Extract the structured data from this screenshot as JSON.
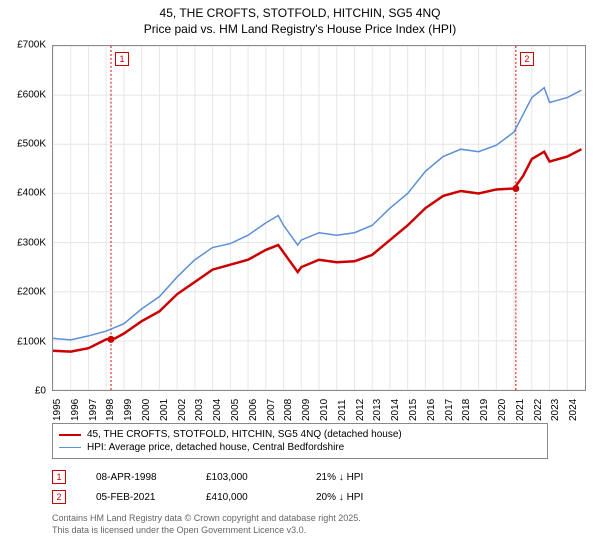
{
  "title": {
    "line1": "45, THE CROFTS, STOTFOLD, HITCHIN, SG5 4NQ",
    "line2": "Price paid vs. HM Land Registry's House Price Index (HPI)"
  },
  "chart": {
    "type": "line",
    "background_color": "#ffffff",
    "grid_color": "#e6e6e6",
    "border_color": "#888888",
    "ylim": [
      0,
      700000
    ],
    "ytick_step": 100000,
    "y_ticks": [
      {
        "v": 0,
        "label": "£0"
      },
      {
        "v": 100000,
        "label": "£100K"
      },
      {
        "v": 200000,
        "label": "£200K"
      },
      {
        "v": 300000,
        "label": "£300K"
      },
      {
        "v": 400000,
        "label": "£400K"
      },
      {
        "v": 500000,
        "label": "£500K"
      },
      {
        "v": 600000,
        "label": "£600K"
      },
      {
        "v": 700000,
        "label": "£700K"
      }
    ],
    "xlim": [
      1995,
      2025
    ],
    "x_ticks": [
      1995,
      1996,
      1997,
      1998,
      1999,
      2000,
      2001,
      2002,
      2003,
      2004,
      2005,
      2006,
      2007,
      2008,
      2009,
      2010,
      2011,
      2012,
      2013,
      2014,
      2015,
      2016,
      2017,
      2018,
      2019,
      2020,
      2021,
      2022,
      2023,
      2024
    ],
    "series": [
      {
        "name": "45, THE CROFTS, STOTFOLD, HITCHIN, SG5 4NQ (detached house)",
        "color": "#cc0000",
        "line_width": 2.5,
        "points": [
          [
            1995,
            80000
          ],
          [
            1996,
            78000
          ],
          [
            1997,
            85000
          ],
          [
            1998,
            103000
          ],
          [
            1998.5,
            105000
          ],
          [
            1999,
            115000
          ],
          [
            2000,
            140000
          ],
          [
            2001,
            160000
          ],
          [
            2002,
            195000
          ],
          [
            2003,
            220000
          ],
          [
            2004,
            245000
          ],
          [
            2005,
            255000
          ],
          [
            2006,
            265000
          ],
          [
            2007,
            285000
          ],
          [
            2007.7,
            295000
          ],
          [
            2008,
            280000
          ],
          [
            2008.8,
            240000
          ],
          [
            2009,
            250000
          ],
          [
            2010,
            265000
          ],
          [
            2011,
            260000
          ],
          [
            2012,
            262000
          ],
          [
            2013,
            275000
          ],
          [
            2014,
            305000
          ],
          [
            2015,
            335000
          ],
          [
            2016,
            370000
          ],
          [
            2017,
            395000
          ],
          [
            2018,
            405000
          ],
          [
            2019,
            400000
          ],
          [
            2020,
            408000
          ],
          [
            2021,
            410000
          ],
          [
            2021.5,
            435000
          ],
          [
            2022,
            470000
          ],
          [
            2022.7,
            485000
          ],
          [
            2023,
            465000
          ],
          [
            2024,
            475000
          ],
          [
            2024.8,
            490000
          ]
        ]
      },
      {
        "name": "HPI: Average price, detached house, Central Bedfordshire",
        "color": "#5b8fd6",
        "line_width": 1.5,
        "points": [
          [
            1995,
            105000
          ],
          [
            1996,
            102000
          ],
          [
            1997,
            110000
          ],
          [
            1998,
            120000
          ],
          [
            1999,
            135000
          ],
          [
            2000,
            165000
          ],
          [
            2001,
            190000
          ],
          [
            2002,
            230000
          ],
          [
            2003,
            265000
          ],
          [
            2004,
            290000
          ],
          [
            2005,
            298000
          ],
          [
            2006,
            315000
          ],
          [
            2007,
            340000
          ],
          [
            2007.7,
            355000
          ],
          [
            2008,
            335000
          ],
          [
            2008.8,
            295000
          ],
          [
            2009,
            305000
          ],
          [
            2010,
            320000
          ],
          [
            2011,
            315000
          ],
          [
            2012,
            320000
          ],
          [
            2013,
            335000
          ],
          [
            2014,
            370000
          ],
          [
            2015,
            400000
          ],
          [
            2016,
            445000
          ],
          [
            2017,
            475000
          ],
          [
            2018,
            490000
          ],
          [
            2019,
            485000
          ],
          [
            2020,
            498000
          ],
          [
            2021,
            525000
          ],
          [
            2021.5,
            560000
          ],
          [
            2022,
            595000
          ],
          [
            2022.7,
            615000
          ],
          [
            2023,
            585000
          ],
          [
            2024,
            595000
          ],
          [
            2024.8,
            610000
          ]
        ]
      }
    ],
    "markers": [
      {
        "id": "1",
        "x": 1998.27,
        "y": 103000,
        "color": "#cc0000"
      },
      {
        "id": "2",
        "x": 2021.1,
        "y": 410000,
        "color": "#cc0000"
      }
    ],
    "label_fontsize": 10,
    "title_fontsize": 12
  },
  "legend": {
    "rows": [
      {
        "color": "#cc0000",
        "width": 2.5,
        "label": "45, THE CROFTS, STOTFOLD, HITCHIN, SG5 4NQ (detached house)"
      },
      {
        "color": "#5b8fd6",
        "width": 1.5,
        "label": "HPI: Average price, detached house, Central Bedfordshire"
      }
    ]
  },
  "data_table": {
    "rows": [
      {
        "marker": "1",
        "date": "08-APR-1998",
        "price": "£103,000",
        "delta": "21% ↓ HPI"
      },
      {
        "marker": "2",
        "date": "05-FEB-2021",
        "price": "£410,000",
        "delta": "20% ↓ HPI"
      }
    ]
  },
  "footer": {
    "line1": "Contains HM Land Registry data © Crown copyright and database right 2025.",
    "line2": "This data is licensed under the Open Government Licence v3.0."
  }
}
